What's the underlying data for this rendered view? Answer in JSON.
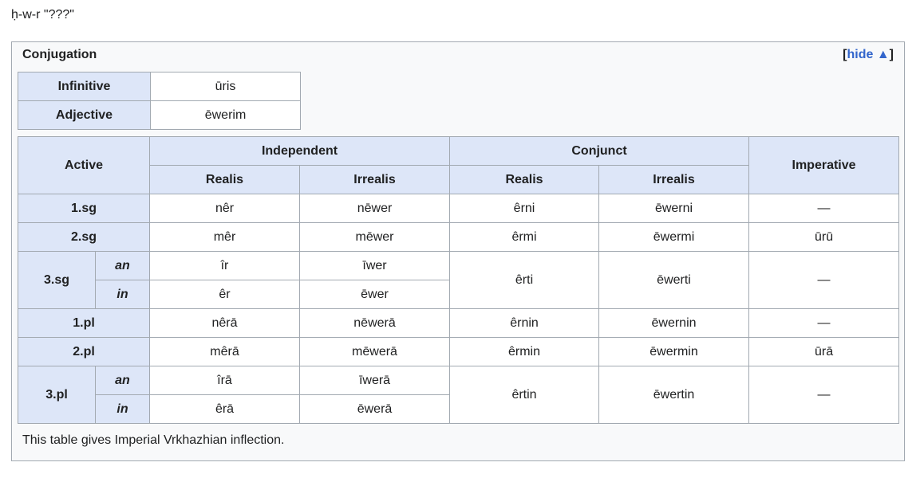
{
  "page_title": "ḥ-w-r \"???\"",
  "box": {
    "title": "Conjugation",
    "toggle": [
      "[",
      "hide ▲",
      "]"
    ],
    "nonfinite": [
      [
        "Infinitive",
        "ūris"
      ],
      [
        "Adjective",
        "ēwerim"
      ]
    ],
    "conjugation": {
      "header": {
        "voice": "Active",
        "groups": [
          "Independent",
          "Conjunct",
          "Imperative"
        ],
        "moods": [
          "Realis",
          "Irrealis",
          "Realis",
          "Irrealis"
        ]
      },
      "rows": [
        {
          "person": "1.sg",
          "forms": [
            "nêr",
            "nēwer",
            "êrni",
            "ēwerni",
            "—"
          ]
        },
        {
          "person": "2.sg",
          "forms": [
            "mêr",
            "mēwer",
            "êrmi",
            "ēwermi",
            "ūrū"
          ]
        },
        {
          "person": "3.sg",
          "subrows": [
            {
              "gender": "an",
              "forms": [
                "îr",
                "īwer"
              ]
            },
            {
              "gender": "in",
              "forms": [
                "êr",
                "ēwer"
              ]
            }
          ],
          "forms": [
            "êrti",
            "ēwerti",
            "—"
          ]
        },
        {
          "person": "1.pl",
          "forms": [
            "nêrā",
            "nēwerā",
            "êrnin",
            "ēwernin",
            "—"
          ]
        },
        {
          "person": "2.pl",
          "forms": [
            "mêrā",
            "mēwerā",
            "êrmin",
            "ēwermin",
            "ūrā"
          ]
        },
        {
          "person": "3.pl",
          "subrows": [
            {
              "gender": "an",
              "forms": [
                "îrā",
                "īwerā"
              ]
            },
            {
              "gender": "in",
              "forms": [
                "êrā",
                "ēwerā"
              ]
            }
          ],
          "forms": [
            "êrtin",
            "ēwertin",
            "—"
          ]
        }
      ]
    },
    "footer": "This table gives Imperial Vrkhazhian inflection."
  }
}
